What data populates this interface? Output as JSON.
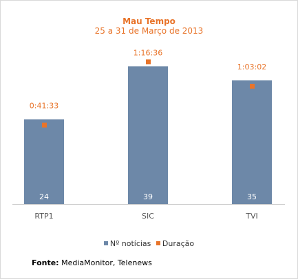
{
  "chart_data": {
    "type": "bar",
    "title": "Mau Tempo",
    "subtitle": "25 a 31 de Março de 2013",
    "categories": [
      "RTP1",
      "SIC",
      "TVI"
    ],
    "series": [
      {
        "name": "Nº notícias",
        "kind": "bar",
        "color": "#6d88a8",
        "values": [
          24,
          39,
          35
        ]
      },
      {
        "name": "Duração",
        "kind": "marker",
        "color": "#e8742a",
        "values": [
          "0:41:33",
          "1:16:36",
          "1:03:02"
        ]
      }
    ],
    "ylim": [
      0,
      42
    ],
    "xlabel": "",
    "ylabel": "",
    "grid": false,
    "legend": "bottom"
  },
  "source": {
    "label": "Fonte:",
    "text": "MediaMonitor, Telenews"
  }
}
